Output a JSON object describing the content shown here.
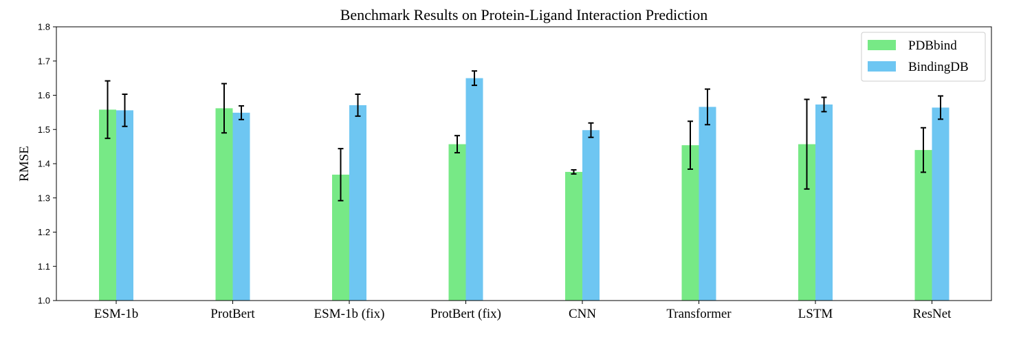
{
  "chart_data": {
    "type": "bar",
    "title": "Benchmark Results on Protein-Ligand Interaction Prediction",
    "xlabel": "",
    "ylabel": "RMSE",
    "ylim": [
      1.0,
      1.8
    ],
    "yticks": [
      "1.0",
      "1.1",
      "1.2",
      "1.3",
      "1.4",
      "1.5",
      "1.6",
      "1.7",
      "1.8"
    ],
    "categories": [
      "ESM-1b",
      "ProtBert",
      "ESM-1b (fix)",
      "ProtBert (fix)",
      "CNN",
      "Transformer",
      "LSTM",
      "ResNet"
    ],
    "series": [
      {
        "name": "PDBbind",
        "color": "#77e986",
        "values": [
          1.558,
          1.562,
          1.368,
          1.457,
          1.376,
          1.454,
          1.457,
          1.44
        ],
        "errors": [
          0.084,
          0.072,
          0.076,
          0.025,
          0.006,
          0.07,
          0.131,
          0.065
        ]
      },
      {
        "name": "BindingDB",
        "color": "#6ec6f2",
        "values": [
          1.556,
          1.549,
          1.571,
          1.65,
          1.498,
          1.566,
          1.573,
          1.564
        ],
        "errors": [
          0.047,
          0.02,
          0.032,
          0.021,
          0.021,
          0.052,
          0.021,
          0.034
        ]
      }
    ],
    "grid": false,
    "legend_position": "top-right"
  }
}
